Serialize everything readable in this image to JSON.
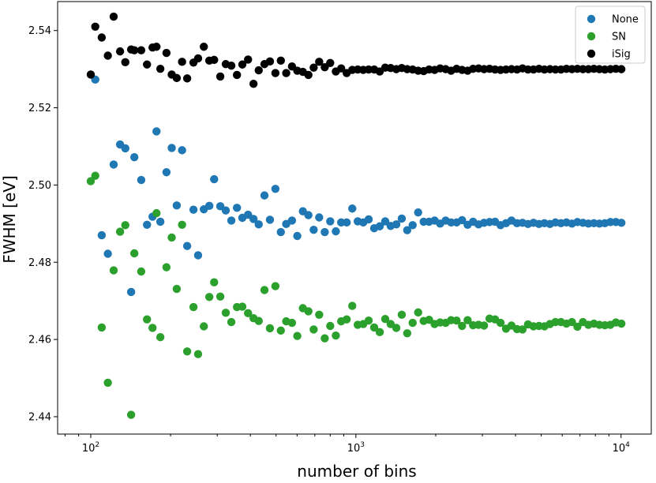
{
  "chart_data": {
    "type": "scatter",
    "title": "",
    "xlabel": "number of bins",
    "ylabel": "FWHM [eV]",
    "xscale": "log",
    "xlim": [
      75,
      13000
    ],
    "ylim": [
      2.4355,
      2.5475
    ],
    "xticks": [
      {
        "value": 100,
        "base": "10",
        "exp": "2"
      },
      {
        "value": 1000,
        "base": "10",
        "exp": "3"
      },
      {
        "value": 10000,
        "base": "10",
        "exp": "4"
      }
    ],
    "yticks": [
      {
        "value": 2.44,
        "label": "2.44"
      },
      {
        "value": 2.46,
        "label": "2.46"
      },
      {
        "value": 2.48,
        "label": "2.48"
      },
      {
        "value": 2.5,
        "label": "2.50"
      },
      {
        "value": 2.52,
        "label": "2.52"
      },
      {
        "value": 2.54,
        "label": "2.54"
      }
    ],
    "legend_position": "top-right",
    "grid": false,
    "series": [
      {
        "name": "None",
        "color": "#1f77b4",
        "points": [
          [
            104,
            2.5273
          ],
          [
            110,
            2.487
          ],
          [
            116,
            2.4822
          ],
          [
            122,
            2.5053
          ],
          [
            129,
            2.5105
          ],
          [
            135,
            2.5095
          ],
          [
            142,
            2.4723
          ],
          [
            146,
            2.5072
          ],
          [
            155,
            2.5013
          ],
          [
            163,
            2.4897
          ],
          [
            171,
            2.4918
          ],
          [
            177,
            2.5139
          ],
          [
            183,
            2.4905
          ],
          [
            193,
            2.5033
          ],
          [
            202,
            2.5096
          ],
          [
            211,
            2.4947
          ],
          [
            221,
            2.509
          ],
          [
            231,
            2.4842
          ],
          [
            244,
            2.4936
          ],
          [
            254,
            2.4818
          ],
          [
            267,
            2.4937
          ],
          [
            280,
            2.4946
          ],
          [
            292,
            2.5015
          ],
          [
            308,
            2.4945
          ],
          [
            323,
            2.4934
          ],
          [
            339,
            2.4908
          ],
          [
            356,
            2.4941
          ],
          [
            373,
            2.4915
          ],
          [
            392,
            2.4923
          ],
          [
            411,
            2.4912
          ],
          [
            430,
            2.4898
          ],
          [
            452,
            2.4973
          ],
          [
            474,
            2.491
          ],
          [
            497,
            2.499
          ],
          [
            521,
            2.4878
          ],
          [
            546,
            2.4899
          ],
          [
            574,
            2.4908
          ],
          [
            601,
            2.4868
          ],
          [
            631,
            2.4932
          ],
          [
            662,
            2.4922
          ],
          [
            693,
            2.4884
          ],
          [
            727,
            2.4916
          ],
          [
            763,
            2.4878
          ],
          [
            800,
            2.4906
          ],
          [
            840,
            2.488
          ],
          [
            880,
            2.4903
          ],
          [
            923,
            2.4903
          ],
          [
            969,
            2.4939
          ],
          [
            1016,
            2.4906
          ],
          [
            1066,
            2.4903
          ],
          [
            1117,
            2.4911
          ],
          [
            1172,
            2.4888
          ],
          [
            1230,
            2.4893
          ],
          [
            1290,
            2.4906
          ],
          [
            1352,
            2.4894
          ],
          [
            1420,
            2.4898
          ],
          [
            1489,
            2.4913
          ],
          [
            1561,
            2.4883
          ],
          [
            1637,
            2.4896
          ],
          [
            1717,
            2.4929
          ],
          [
            1801,
            2.4905
          ],
          [
            1888,
            2.4905
          ],
          [
            1981,
            2.4908
          ],
          [
            2078,
            2.49
          ],
          [
            2180,
            2.4908
          ],
          [
            2286,
            2.4903
          ],
          [
            2397,
            2.4903
          ],
          [
            2514,
            2.4909
          ],
          [
            2638,
            2.4897
          ],
          [
            2766,
            2.4905
          ],
          [
            2901,
            2.4898
          ],
          [
            3043,
            2.4902
          ],
          [
            3191,
            2.4904
          ],
          [
            3348,
            2.4905
          ],
          [
            3511,
            2.4896
          ],
          [
            3682,
            2.4901
          ],
          [
            3862,
            2.4908
          ],
          [
            4051,
            2.4901
          ],
          [
            4249,
            2.4902
          ],
          [
            4457,
            2.4899
          ],
          [
            4674,
            2.4902
          ],
          [
            4903,
            2.4899
          ],
          [
            5142,
            2.4901
          ],
          [
            5393,
            2.4899
          ],
          [
            5657,
            2.4903
          ],
          [
            5933,
            2.4901
          ],
          [
            6224,
            2.4903
          ],
          [
            6528,
            2.49
          ],
          [
            6846,
            2.4904
          ],
          [
            7181,
            2.4902
          ],
          [
            7532,
            2.49
          ],
          [
            7900,
            2.4901
          ],
          [
            8286,
            2.49
          ],
          [
            8691,
            2.4901
          ],
          [
            9115,
            2.4904
          ],
          [
            9561,
            2.4904
          ],
          [
            10028,
            2.4902
          ]
        ]
      },
      {
        "name": "SN",
        "color": "#2ca02c",
        "points": [
          [
            100,
            2.501
          ],
          [
            104,
            2.5024
          ],
          [
            110,
            2.4631
          ],
          [
            116,
            2.4488
          ],
          [
            122,
            2.4779
          ],
          [
            129,
            2.4879
          ],
          [
            135,
            2.4896
          ],
          [
            142,
            2.4405
          ],
          [
            146,
            2.4823
          ],
          [
            155,
            2.4776
          ],
          [
            163,
            2.4652
          ],
          [
            171,
            2.463
          ],
          [
            177,
            2.4927
          ],
          [
            183,
            2.4606
          ],
          [
            193,
            2.4787
          ],
          [
            202,
            2.4864
          ],
          [
            211,
            2.4731
          ],
          [
            221,
            2.4897
          ],
          [
            231,
            2.4569
          ],
          [
            244,
            2.4684
          ],
          [
            254,
            2.4562
          ],
          [
            267,
            2.4634
          ],
          [
            280,
            2.471
          ],
          [
            292,
            2.4748
          ],
          [
            308,
            2.4711
          ],
          [
            323,
            2.4669
          ],
          [
            339,
            2.4645
          ],
          [
            356,
            2.4684
          ],
          [
            373,
            2.4685
          ],
          [
            392,
            2.4668
          ],
          [
            411,
            2.4655
          ],
          [
            430,
            2.4648
          ],
          [
            452,
            2.4728
          ],
          [
            474,
            2.4629
          ],
          [
            497,
            2.4738
          ],
          [
            521,
            2.4623
          ],
          [
            546,
            2.4647
          ],
          [
            574,
            2.4643
          ],
          [
            601,
            2.4609
          ],
          [
            631,
            2.4681
          ],
          [
            662,
            2.4673
          ],
          [
            693,
            2.4626
          ],
          [
            727,
            2.4664
          ],
          [
            763,
            2.4603
          ],
          [
            800,
            2.4635
          ],
          [
            840,
            2.461
          ],
          [
            880,
            2.4647
          ],
          [
            923,
            2.4652
          ],
          [
            969,
            2.4687
          ],
          [
            1016,
            2.4638
          ],
          [
            1066,
            2.464
          ],
          [
            1117,
            2.4649
          ],
          [
            1172,
            2.4631
          ],
          [
            1230,
            2.4619
          ],
          [
            1290,
            2.4653
          ],
          [
            1352,
            2.464
          ],
          [
            1420,
            2.463
          ],
          [
            1489,
            2.4664
          ],
          [
            1561,
            2.4616
          ],
          [
            1637,
            2.4643
          ],
          [
            1717,
            2.467
          ],
          [
            1801,
            2.4648
          ],
          [
            1888,
            2.4651
          ],
          [
            1981,
            2.464
          ],
          [
            2078,
            2.4644
          ],
          [
            2180,
            2.4643
          ],
          [
            2286,
            2.465
          ],
          [
            2397,
            2.4649
          ],
          [
            2514,
            2.4635
          ],
          [
            2638,
            2.465
          ],
          [
            2766,
            2.4637
          ],
          [
            2901,
            2.4638
          ],
          [
            3043,
            2.4636
          ],
          [
            3191,
            2.4654
          ],
          [
            3348,
            2.4652
          ],
          [
            3511,
            2.4643
          ],
          [
            3682,
            2.4628
          ],
          [
            3862,
            2.4636
          ],
          [
            4051,
            2.4627
          ],
          [
            4249,
            2.4626
          ],
          [
            4457,
            2.4639
          ],
          [
            4674,
            2.4634
          ],
          [
            4903,
            2.4635
          ],
          [
            5142,
            2.4634
          ],
          [
            5393,
            2.464
          ],
          [
            5657,
            2.4645
          ],
          [
            5933,
            2.4645
          ],
          [
            6224,
            2.4641
          ],
          [
            6528,
            2.4645
          ],
          [
            6846,
            2.4633
          ],
          [
            7181,
            2.4645
          ],
          [
            7532,
            2.4638
          ],
          [
            7900,
            2.4641
          ],
          [
            8286,
            2.4638
          ],
          [
            8691,
            2.4637
          ],
          [
            9115,
            2.4638
          ],
          [
            9561,
            2.4644
          ],
          [
            10028,
            2.4641
          ]
        ]
      },
      {
        "name": "iSig",
        "color": "#000000",
        "points": [
          [
            100,
            2.5286
          ],
          [
            104,
            2.541
          ],
          [
            110,
            2.5382
          ],
          [
            116,
            2.5335
          ],
          [
            122,
            2.5436
          ],
          [
            129,
            2.5346
          ],
          [
            135,
            2.5318
          ],
          [
            142,
            2.5351
          ],
          [
            146,
            2.5349
          ],
          [
            155,
            2.5349
          ],
          [
            163,
            2.5312
          ],
          [
            171,
            2.5356
          ],
          [
            177,
            2.5358
          ],
          [
            183,
            2.5301
          ],
          [
            193,
            2.5342
          ],
          [
            202,
            2.5286
          ],
          [
            211,
            2.5277
          ],
          [
            221,
            2.5319
          ],
          [
            231,
            2.5276
          ],
          [
            244,
            2.5317
          ],
          [
            254,
            2.5328
          ],
          [
            267,
            2.5358
          ],
          [
            280,
            2.5322
          ],
          [
            292,
            2.5324
          ],
          [
            308,
            2.5281
          ],
          [
            323,
            2.5313
          ],
          [
            339,
            2.5309
          ],
          [
            356,
            2.5285
          ],
          [
            373,
            2.5312
          ],
          [
            392,
            2.5325
          ],
          [
            411,
            2.5262
          ],
          [
            430,
            2.5297
          ],
          [
            452,
            2.5313
          ],
          [
            474,
            2.532
          ],
          [
            497,
            2.529
          ],
          [
            521,
            2.5322
          ],
          [
            546,
            2.529
          ],
          [
            574,
            2.5307
          ],
          [
            601,
            2.5296
          ],
          [
            631,
            2.5293
          ],
          [
            662,
            2.5285
          ],
          [
            693,
            2.5304
          ],
          [
            727,
            2.5319
          ],
          [
            763,
            2.5305
          ],
          [
            800,
            2.5316
          ],
          [
            840,
            2.5294
          ],
          [
            880,
            2.5302
          ],
          [
            923,
            2.529
          ],
          [
            969,
            2.5298
          ],
          [
            1016,
            2.5299
          ],
          [
            1066,
            2.5298
          ],
          [
            1117,
            2.5299
          ],
          [
            1172,
            2.5299
          ],
          [
            1230,
            2.5294
          ],
          [
            1290,
            2.5304
          ],
          [
            1352,
            2.5303
          ],
          [
            1420,
            2.53
          ],
          [
            1489,
            2.5303
          ],
          [
            1561,
            2.53
          ],
          [
            1637,
            2.5299
          ],
          [
            1717,
            2.5296
          ],
          [
            1801,
            2.5295
          ],
          [
            1888,
            2.5299
          ],
          [
            1981,
            2.5298
          ],
          [
            2078,
            2.5302
          ],
          [
            2180,
            2.53
          ],
          [
            2286,
            2.5296
          ],
          [
            2397,
            2.5301
          ],
          [
            2514,
            2.5298
          ],
          [
            2638,
            2.5296
          ],
          [
            2766,
            2.5301
          ],
          [
            2901,
            2.5302
          ],
          [
            3043,
            2.53
          ],
          [
            3191,
            2.5301
          ],
          [
            3348,
            2.5299
          ],
          [
            3511,
            2.5298
          ],
          [
            3682,
            2.5299
          ],
          [
            3862,
            2.53
          ],
          [
            4051,
            2.5299
          ],
          [
            4249,
            2.5302
          ],
          [
            4457,
            2.5299
          ],
          [
            4674,
            2.5299
          ],
          [
            4903,
            2.5301
          ],
          [
            5142,
            2.5299
          ],
          [
            5393,
            2.53
          ],
          [
            5657,
            2.5299
          ],
          [
            5933,
            2.5299
          ],
          [
            6224,
            2.5301
          ],
          [
            6528,
            2.53
          ],
          [
            6846,
            2.5301
          ],
          [
            7181,
            2.53
          ],
          [
            7532,
            2.53
          ],
          [
            7900,
            2.5301
          ],
          [
            8286,
            2.53
          ],
          [
            8691,
            2.5299
          ],
          [
            9115,
            2.53
          ],
          [
            9561,
            2.5301
          ],
          [
            10028,
            2.53
          ]
        ]
      }
    ]
  }
}
